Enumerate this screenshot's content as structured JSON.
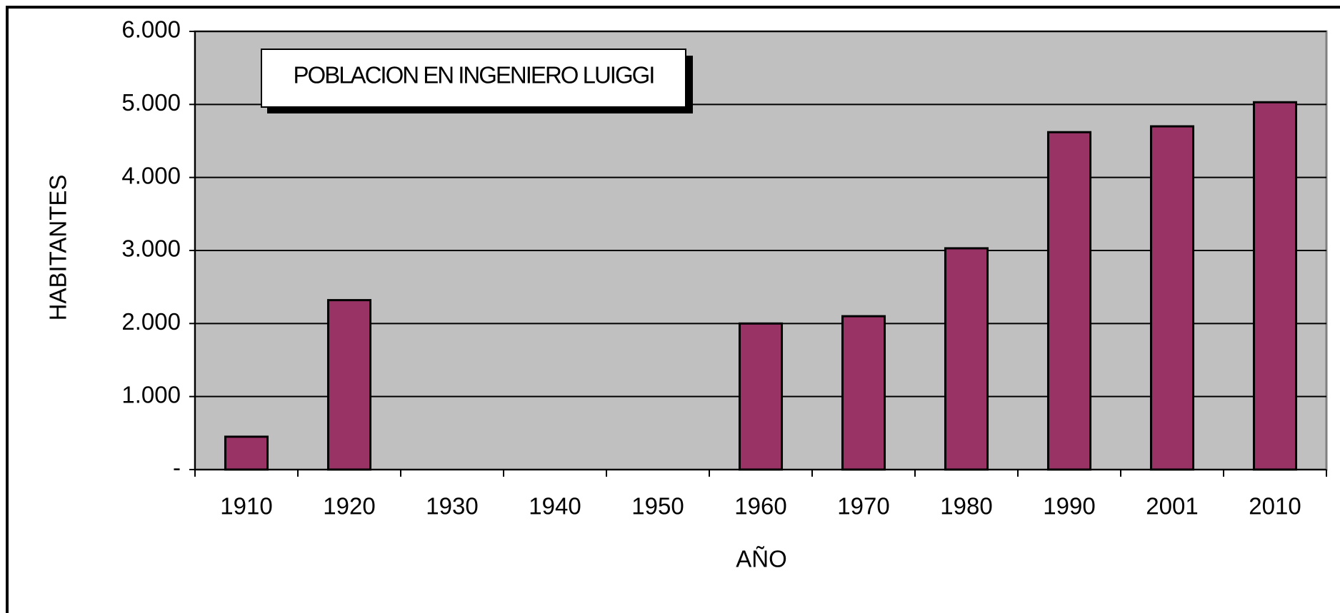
{
  "chart_data": {
    "type": "bar",
    "title": "POBLACION EN INGENIERO LUIGGI",
    "x_label": "AÑO",
    "y_label": "HABITANTES",
    "categories": [
      "1910",
      "1920",
      "1930",
      "1940",
      "1950",
      "1960",
      "1970",
      "1980",
      "1990",
      "2001",
      "2010"
    ],
    "values": [
      450,
      2320,
      null,
      null,
      null,
      2000,
      2100,
      3030,
      4620,
      4700,
      5030
    ],
    "color": "#993366",
    "background": "#c0c0c0",
    "ylim": [
      0,
      6000
    ],
    "yticks": [
      {
        "value": 0,
        "label": "-"
      },
      {
        "value": 1000,
        "label": "1.000"
      },
      {
        "value": 2000,
        "label": "2.000"
      },
      {
        "value": 3000,
        "label": "3.000"
      },
      {
        "value": 4000,
        "label": "4.000"
      },
      {
        "value": 5000,
        "label": "5.000"
      },
      {
        "value": 6000,
        "label": "6.000"
      }
    ],
    "grid": true
  }
}
